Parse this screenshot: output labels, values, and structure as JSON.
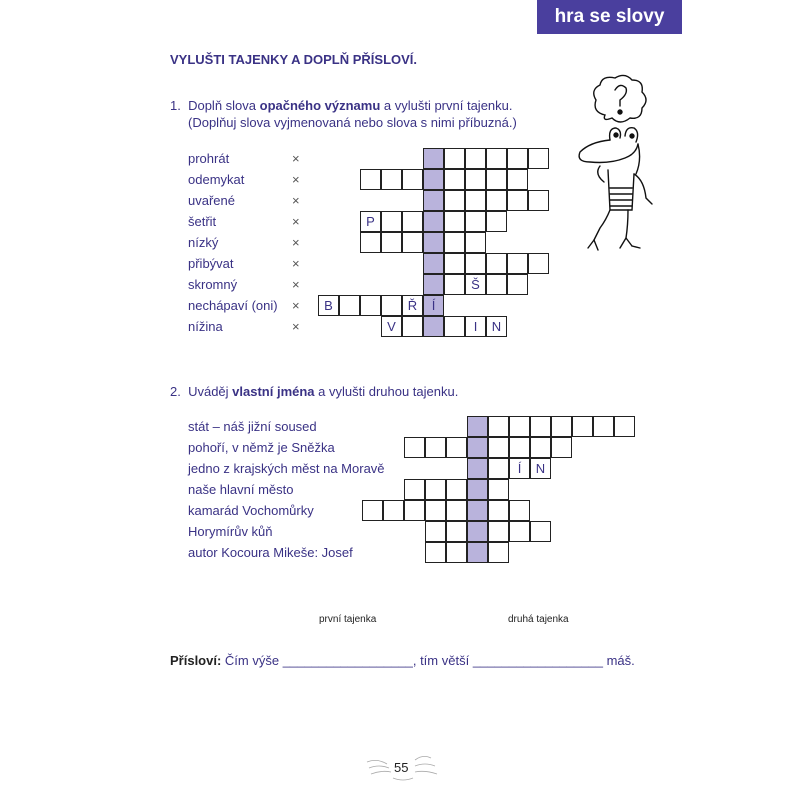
{
  "header": {
    "badge": "hra se slovy"
  },
  "title": "VYLUŠTI TAJENKY A DOPLŇ PŘÍSLOVÍ.",
  "task1": {
    "number": "1.",
    "text_a": "Doplň slova ",
    "text_bold": "opačného významu",
    "text_b": " a vylušti první tajenku.",
    "line2": "(Doplňuj slova vyjmenovaná nebo slova s nimi příbuzná.)",
    "separator": "×",
    "rows": [
      {
        "label": "prohrát",
        "cells": [
          "",
          "",
          "",
          "",
          "",
          ""
        ]
      },
      {
        "label": "odemykat",
        "cells": [
          "",
          "",
          "",
          "",
          "",
          "",
          "",
          ""
        ]
      },
      {
        "label": "uvařené",
        "cells": [
          "",
          "",
          "",
          "",
          "",
          ""
        ]
      },
      {
        "label": "šetřit",
        "cells": [
          "P",
          "",
          "",
          "",
          "",
          "",
          ""
        ]
      },
      {
        "label": "nízký",
        "cells": [
          "",
          "",
          "",
          "",
          "",
          ""
        ]
      },
      {
        "label": "přibývat",
        "cells": [
          "",
          "",
          "",
          "",
          "",
          ""
        ]
      },
      {
        "label": "skromný",
        "cells": [
          "",
          "",
          "Š",
          "",
          ""
        ]
      },
      {
        "label": "nechápaví (oni)",
        "cells": [
          "B",
          "",
          "",
          "",
          "Ř",
          "Í"
        ]
      },
      {
        "label": "nížina",
        "cells": [
          "V",
          "",
          "",
          "",
          "I",
          "N"
        ]
      }
    ]
  },
  "task2": {
    "number": "2.",
    "text_a": "Uváděj ",
    "text_bold": "vlastní jména",
    "text_b": " a vylušti druhou tajenku.",
    "rows": [
      {
        "label": "stát – náš jižní soused",
        "cells": [
          "",
          "",
          "",
          "",
          "",
          "",
          "",
          ""
        ]
      },
      {
        "label": "pohoří, v němž je Sněžka",
        "cells": [
          "",
          "",
          "",
          "",
          "",
          "",
          "",
          ""
        ]
      },
      {
        "label": "jedno z krajských měst na Moravě",
        "cells": [
          "",
          "",
          "Í",
          "N"
        ]
      },
      {
        "label": "naše hlavní město",
        "cells": [
          "",
          "",
          "",
          "",
          ""
        ]
      },
      {
        "label": "kamarád Vochomůrky",
        "cells": [
          "",
          "",
          "",
          "",
          "",
          "",
          "",
          ""
        ]
      },
      {
        "label": "Horymírův kůň",
        "cells": [
          "",
          "",
          "",
          "",
          "",
          ""
        ]
      },
      {
        "label": "autor Kocoura Mikeše: Josef",
        "cells": [
          "",
          "",
          "",
          ""
        ]
      }
    ]
  },
  "answers": {
    "first_label": "první tajenka",
    "second_label": "druhá tajenka"
  },
  "proverb": {
    "label": "Přísloví:",
    "part1": " Čím výše ",
    "blank1": "__________________",
    "part2": ", tím větší ",
    "blank2": "__________________",
    "part3": " máš."
  },
  "page_number": "55",
  "colors": {
    "accent": "#4a3f9e",
    "text": "#3a3285",
    "highlight": "#b9b3dc"
  },
  "illustration": {
    "icon": "frog-with-question-mark-icon"
  }
}
